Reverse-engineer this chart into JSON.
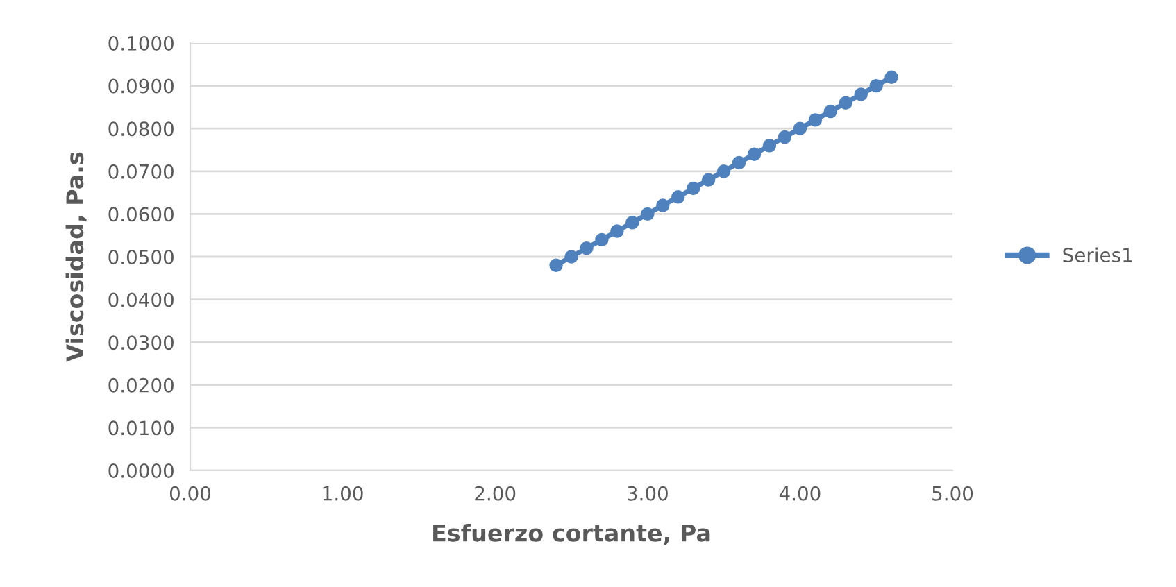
{
  "chart_data": {
    "type": "line",
    "xlabel": "Esfuerzo cortante, Pa",
    "ylabel": "Viscosidad, Pa.s",
    "x": [
      2.4,
      2.5,
      2.6,
      2.7,
      2.8,
      2.9,
      3.0,
      3.1,
      3.2,
      3.3,
      3.4,
      3.5,
      3.6,
      3.7,
      3.8,
      3.9,
      4.0,
      4.1,
      4.2,
      4.3,
      4.4,
      4.5,
      4.6
    ],
    "series": [
      {
        "name": "Series1",
        "color": "#4f81bd",
        "values": [
          0.048,
          0.05,
          0.052,
          0.054,
          0.056,
          0.058,
          0.06,
          0.062,
          0.064,
          0.066,
          0.068,
          0.07,
          0.072,
          0.074,
          0.076,
          0.078,
          0.08,
          0.082,
          0.084,
          0.086,
          0.088,
          0.09,
          0.092
        ]
      }
    ],
    "xlim": [
      0,
      5
    ],
    "xticks": [
      {
        "value": 0,
        "label": "0.00"
      },
      {
        "value": 1,
        "label": "1.00"
      },
      {
        "value": 2,
        "label": "2.00"
      },
      {
        "value": 3,
        "label": "3.00"
      },
      {
        "value": 4,
        "label": "4.00"
      },
      {
        "value": 5,
        "label": "5.00"
      }
    ],
    "ylim": [
      0,
      0.1
    ],
    "yticks": [
      {
        "value": 0,
        "label": "0.0000"
      },
      {
        "value": 0.01,
        "label": "0.0100"
      },
      {
        "value": 0.02,
        "label": "0.0200"
      },
      {
        "value": 0.03,
        "label": "0.0300"
      },
      {
        "value": 0.04,
        "label": "0.0400"
      },
      {
        "value": 0.05,
        "label": "0.0500"
      },
      {
        "value": 0.06,
        "label": "0.0600"
      },
      {
        "value": 0.07,
        "label": "0.0700"
      },
      {
        "value": 0.08,
        "label": "0.0800"
      },
      {
        "value": 0.09,
        "label": "0.0900"
      },
      {
        "value": 0.1,
        "label": "0.1000"
      }
    ],
    "grid": "y",
    "legend": "right",
    "marker": "circle",
    "line_style": "solid"
  }
}
